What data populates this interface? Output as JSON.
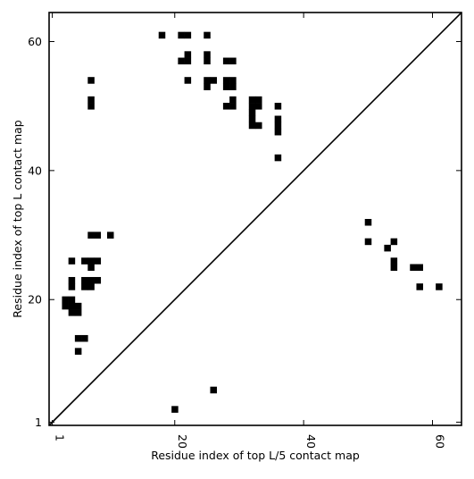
{
  "chart_data": {
    "type": "heatmap",
    "title": "",
    "xlabel": "Residue index of top L/5 contact map",
    "ylabel": "Residue index of top L contact map",
    "xlim": [
      0.5,
      64.5
    ],
    "ylim": [
      0.5,
      64.5
    ],
    "xticks": [
      {
        "value": 1,
        "label": "1"
      },
      {
        "value": 20,
        "label": "20"
      },
      {
        "value": 40,
        "label": "40"
      },
      {
        "value": 60,
        "label": "60"
      }
    ],
    "yticks": [
      {
        "value": 1,
        "label": "1"
      },
      {
        "value": 20,
        "label": "20"
      },
      {
        "value": 40,
        "label": "40"
      },
      {
        "value": 60,
        "label": "60"
      }
    ],
    "xtick_rotation": -90,
    "grid": false,
    "diagonal": true,
    "cell_color": "#000000",
    "background": "#ffffff",
    "upper_cells": [
      [
        18,
        61
      ],
      [
        21,
        61
      ],
      [
        22,
        61
      ],
      [
        25,
        61
      ],
      [
        22,
        58
      ],
      [
        25,
        58
      ],
      [
        21,
        57
      ],
      [
        22,
        57
      ],
      [
        25,
        57
      ],
      [
        28,
        57
      ],
      [
        29,
        57
      ],
      [
        7,
        54
      ],
      [
        22,
        54
      ],
      [
        25,
        54
      ],
      [
        26,
        54
      ],
      [
        28,
        54
      ],
      [
        29,
        54
      ],
      [
        25,
        53
      ],
      [
        28,
        53
      ],
      [
        29,
        53
      ],
      [
        7,
        51
      ],
      [
        29,
        51
      ],
      [
        32,
        51
      ],
      [
        33,
        51
      ],
      [
        7,
        50
      ],
      [
        28,
        50
      ],
      [
        29,
        50
      ],
      [
        32,
        50
      ],
      [
        33,
        50
      ],
      [
        36,
        50
      ],
      [
        32,
        49
      ],
      [
        32,
        48
      ],
      [
        36,
        48
      ],
      [
        32,
        47
      ],
      [
        33,
        47
      ],
      [
        36,
        47
      ],
      [
        36,
        46
      ],
      [
        36,
        42
      ]
    ],
    "lower_cells": [
      [
        50,
        32
      ],
      [
        50,
        29
      ],
      [
        54,
        29
      ],
      [
        53,
        28
      ],
      [
        54,
        26
      ],
      [
        54,
        25
      ],
      [
        57,
        25
      ],
      [
        58,
        25
      ],
      [
        58,
        22
      ],
      [
        61,
        22
      ],
      [
        4,
        26
      ],
      [
        6,
        26
      ],
      [
        7,
        26
      ],
      [
        8,
        26
      ],
      [
        7,
        30
      ],
      [
        8,
        30
      ],
      [
        10,
        30
      ],
      [
        7,
        25
      ],
      [
        4,
        23
      ],
      [
        6,
        23
      ],
      [
        7,
        23
      ],
      [
        8,
        23
      ],
      [
        4,
        22
      ],
      [
        6,
        22
      ],
      [
        7,
        22
      ],
      [
        3,
        20
      ],
      [
        4,
        20
      ],
      [
        3,
        19
      ],
      [
        4,
        19
      ],
      [
        5,
        19
      ],
      [
        4,
        18
      ],
      [
        5,
        18
      ],
      [
        5,
        14
      ],
      [
        6,
        14
      ],
      [
        5,
        12
      ],
      [
        26,
        6
      ],
      [
        20,
        3
      ]
    ]
  }
}
